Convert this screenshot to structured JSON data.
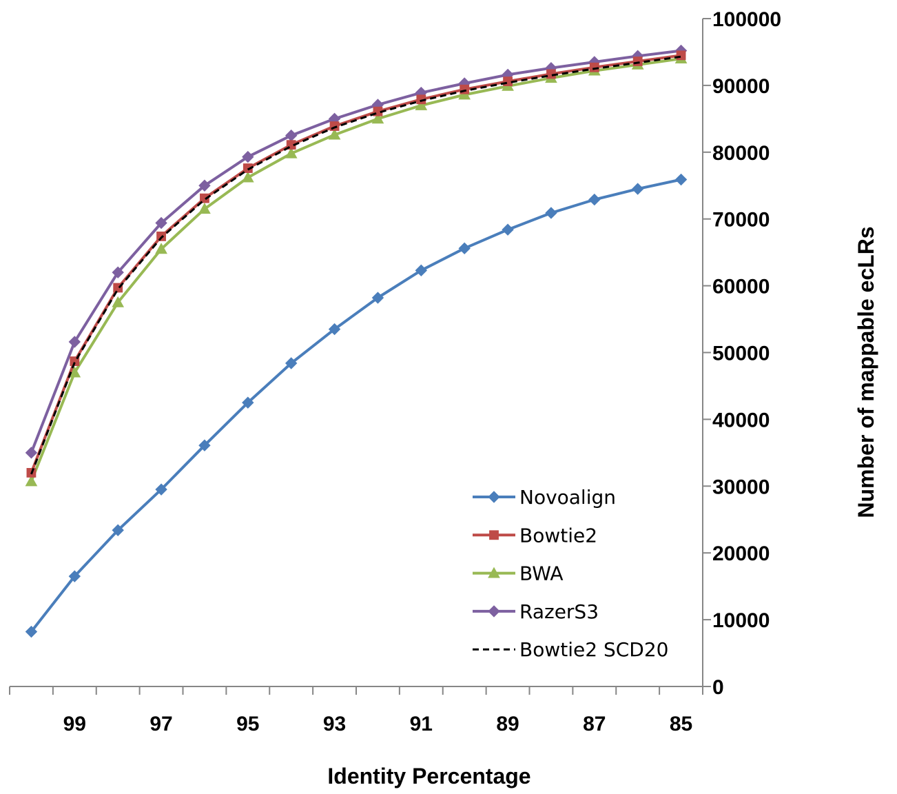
{
  "chart_data": {
    "type": "line",
    "title": "",
    "xlabel": "Identity Percentage",
    "ylabel": "Number of mappable ecLRs",
    "x": [
      100,
      99,
      98,
      97,
      96,
      95,
      94,
      93,
      92,
      91,
      90,
      89,
      88,
      87,
      86,
      85
    ],
    "x_ticks": [
      "99",
      "97",
      "95",
      "93",
      "91",
      "89",
      "87",
      "85"
    ],
    "y_ticks": [
      "0",
      "10000",
      "20000",
      "30000",
      "40000",
      "50000",
      "60000",
      "70000",
      "80000",
      "90000",
      "100000"
    ],
    "ylim": [
      0,
      100000
    ],
    "x_reversed": true,
    "y_axis_position": "right",
    "grid": false,
    "legend_position": "bottom-right",
    "series": [
      {
        "name": "Novoalign",
        "color": "#4A7EBB",
        "marker": "diamond",
        "dashed": false,
        "values": [
          8200,
          16500,
          23400,
          29500,
          36100,
          42500,
          48400,
          53500,
          58200,
          62300,
          65600,
          68400,
          70900,
          72900,
          74500,
          75900
        ]
      },
      {
        "name": "Bowtie2",
        "color": "#BE4B48",
        "marker": "square",
        "dashed": false,
        "values": [
          32000,
          48700,
          59700,
          67400,
          73100,
          77600,
          81100,
          83900,
          86100,
          87900,
          89400,
          90600,
          91700,
          92700,
          93600,
          94500
        ]
      },
      {
        "name": "BWA",
        "color": "#98B954",
        "marker": "triangle",
        "dashed": false,
        "values": [
          30700,
          47000,
          57500,
          65500,
          71500,
          76200,
          79800,
          82600,
          85000,
          87000,
          88600,
          89900,
          91100,
          92200,
          93100,
          94000
        ]
      },
      {
        "name": "RazerS3",
        "color": "#7D60A0",
        "marker": "diamond",
        "dashed": false,
        "values": [
          35000,
          51600,
          62000,
          69400,
          75000,
          79300,
          82500,
          85000,
          87100,
          88900,
          90300,
          91600,
          92600,
          93500,
          94400,
          95200
        ]
      },
      {
        "name": "Bowtie2 SCD20",
        "color": "#000000",
        "marker": "none",
        "dashed": true,
        "values": [
          31800,
          48500,
          59500,
          67200,
          72900,
          77400,
          80900,
          83700,
          85900,
          87700,
          89200,
          90400,
          91500,
          92500,
          93400,
          94300
        ]
      }
    ]
  }
}
